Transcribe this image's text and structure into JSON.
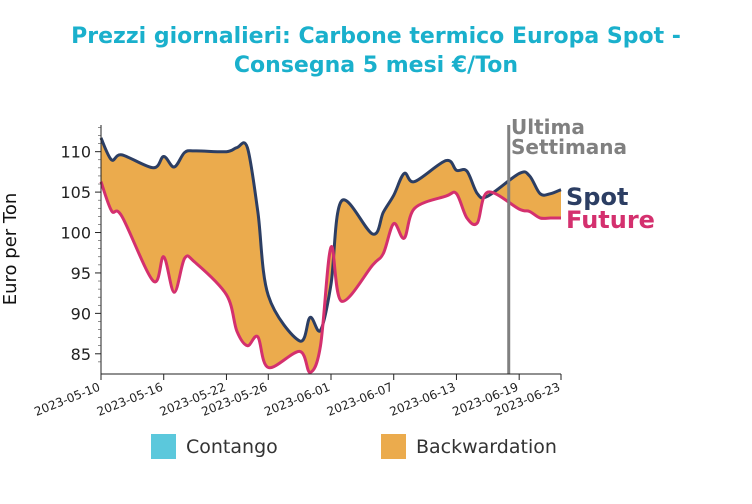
{
  "chart_data": {
    "type": "area",
    "title_lines": [
      "Prezzi giornalieri: Carbone termico Europa Spot -",
      "Consegna 5 mesi €/Ton"
    ],
    "ylabel": "Euro per Ton",
    "xlabel": "",
    "ylim": [
      82.5,
      113.3
    ],
    "xlim": [
      "2023-05-10",
      "2023-06-23"
    ],
    "y_ticks": [
      85,
      90,
      95,
      100,
      105,
      110
    ],
    "x_ticks": [
      "2023-05-10",
      "2023-05-16",
      "2023-05-22",
      "2023-05-26",
      "2023-06-01",
      "2023-06-07",
      "2023-06-13",
      "2023-06-19",
      "2023-06-23"
    ],
    "grid": false,
    "series": [
      {
        "name": "Spot",
        "color": "#2c3e63",
        "x": [
          "2023-05-10",
          "2023-05-11",
          "2023-05-12",
          "2023-05-15",
          "2023-05-16",
          "2023-05-17",
          "2023-05-18",
          "2023-05-19",
          "2023-05-22",
          "2023-05-23",
          "2023-05-24",
          "2023-05-25",
          "2023-05-26",
          "2023-05-29",
          "2023-05-30",
          "2023-05-31",
          "2023-06-01",
          "2023-06-02",
          "2023-06-05",
          "2023-06-06",
          "2023-06-07",
          "2023-06-08",
          "2023-06-09",
          "2023-06-12",
          "2023-06-13",
          "2023-06-14",
          "2023-06-15",
          "2023-06-16",
          "2023-06-19",
          "2023-06-20",
          "2023-06-21",
          "2023-06-22",
          "2023-06-23"
        ],
        "values": [
          111.7,
          109.0,
          109.6,
          108.0,
          109.4,
          108.1,
          109.9,
          110.1,
          110.0,
          110.5,
          110.5,
          102.6,
          92.2,
          86.6,
          89.5,
          87.9,
          93.6,
          103.9,
          99.8,
          102.5,
          104.6,
          107.3,
          106.3,
          108.9,
          107.7,
          107.6,
          104.8,
          104.5,
          107.3,
          107.0,
          104.8,
          104.8,
          105.3
        ]
      },
      {
        "name": "Future",
        "color": "#d4306e",
        "x": [
          "2023-05-10",
          "2023-05-11",
          "2023-05-12",
          "2023-05-15",
          "2023-05-16",
          "2023-05-17",
          "2023-05-18",
          "2023-05-19",
          "2023-05-22",
          "2023-05-23",
          "2023-05-24",
          "2023-05-25",
          "2023-05-26",
          "2023-05-29",
          "2023-05-30",
          "2023-05-31",
          "2023-06-01",
          "2023-06-02",
          "2023-06-05",
          "2023-06-06",
          "2023-06-07",
          "2023-06-08",
          "2023-06-09",
          "2023-06-12",
          "2023-06-13",
          "2023-06-14",
          "2023-06-15",
          "2023-06-16",
          "2023-06-19",
          "2023-06-20",
          "2023-06-21",
          "2023-06-22",
          "2023-06-23"
        ],
        "values": [
          106.3,
          102.7,
          102.0,
          94.0,
          97.0,
          92.6,
          96.8,
          96.3,
          92.3,
          87.8,
          86.0,
          87.1,
          83.3,
          85.3,
          82.7,
          86.0,
          98.2,
          91.5,
          96.0,
          97.4,
          101.1,
          99.3,
          103.0,
          104.5,
          104.8,
          101.8,
          101.2,
          105.0,
          102.9,
          102.6,
          101.8,
          101.8,
          101.8
        ]
      }
    ],
    "fill_legend": [
      {
        "name": "Contango",
        "color": "#5bc8dc"
      },
      {
        "name": "Backwardation",
        "color": "#ebab4d"
      }
    ],
    "annotations": [
      {
        "text_lines": [
          "Ultima",
          "Settimana"
        ],
        "x": "2023-06-18",
        "color": "#808080"
      }
    ]
  }
}
